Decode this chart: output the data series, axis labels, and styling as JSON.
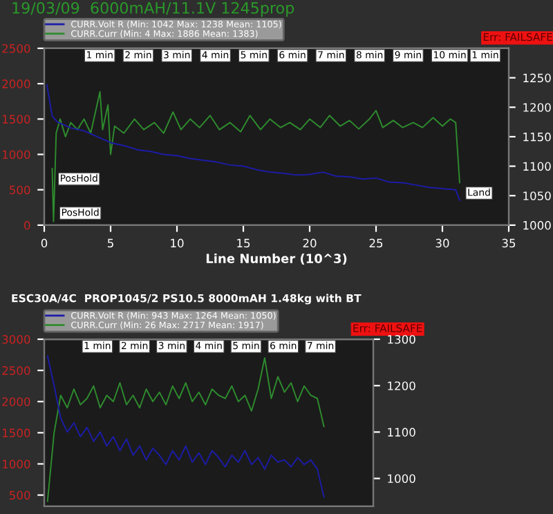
{
  "chart_data": [
    {
      "type": "line",
      "title": "19/03/09  6000mAH/11.1V 1245prop",
      "xlabel": "Line Number (10^3)",
      "legend": "top",
      "xlim": [
        0,
        35
      ],
      "xticks": [
        0,
        5,
        10,
        15,
        20,
        25,
        30,
        35
      ],
      "ylim": [
        0,
        2500
      ],
      "yticks": [
        0,
        500,
        1000,
        1500,
        2000,
        2500
      ],
      "y2lim": [
        1000,
        1300
      ],
      "y2ticks": [
        1000,
        1050,
        1100,
        1150,
        1200,
        1250
      ],
      "series": [
        {
          "name": "CURR.Volt R (Min: 1042 Max: 1238 Mean: 1105)",
          "color": "#1c1ca8",
          "axis": "y2",
          "x": [
            0.2,
            0.6,
            1,
            2,
            3,
            4,
            5,
            6,
            7,
            8,
            9,
            10,
            11,
            12,
            13,
            14,
            15,
            16,
            17,
            18,
            19,
            20,
            21,
            22,
            23,
            24,
            25,
            26,
            27,
            28,
            29,
            30,
            31,
            31.3
          ],
          "values": [
            1238,
            1185,
            1175,
            1165,
            1160,
            1150,
            1140,
            1135,
            1128,
            1125,
            1120,
            1118,
            1113,
            1110,
            1107,
            1102,
            1100,
            1094,
            1090,
            1088,
            1085,
            1086,
            1090,
            1083,
            1082,
            1078,
            1080,
            1073,
            1072,
            1068,
            1064,
            1062,
            1060,
            1042
          ]
        },
        {
          "name": "CURR.Curr (Min: 4 Max: 1886 Mean: 1383)",
          "color": "#2e8c2e",
          "x": [
            0.6,
            0.7,
            0.9,
            1.2,
            1.6,
            2,
            2.5,
            3,
            3.5,
            4.2,
            4.4,
            4.8,
            5,
            5.3,
            6,
            6.8,
            7.5,
            8.3,
            9,
            9.7,
            10.3,
            11,
            11.7,
            12.5,
            13.2,
            14,
            14.8,
            15.5,
            16.3,
            17,
            17.8,
            18.5,
            19.3,
            20,
            20.8,
            21.5,
            22.3,
            23,
            23.7,
            24.5,
            25,
            25.5,
            26.3,
            27,
            27.8,
            28.5,
            29.3,
            30,
            30.6,
            31,
            31.3
          ],
          "values": [
            800,
            50,
            1300,
            1500,
            1250,
            1450,
            1350,
            1500,
            1300,
            1886,
            1350,
            1700,
            1000,
            1400,
            1300,
            1500,
            1350,
            1450,
            1300,
            1600,
            1350,
            1500,
            1380,
            1550,
            1350,
            1450,
            1320,
            1550,
            1350,
            1500,
            1380,
            1450,
            1350,
            1500,
            1380,
            1550,
            1400,
            1480,
            1360,
            1500,
            1620,
            1380,
            1480,
            1380,
            1450,
            1380,
            1520,
            1400,
            1500,
            1450,
            600
          ]
        }
      ],
      "annotations": [
        "Err: FAILSAFE",
        "1 min",
        "2 min",
        "3 min",
        "4 min",
        "5 min",
        "6 min",
        "7 min",
        "8 min",
        "9 min",
        "10 min",
        "1 min",
        {
          "text": "PosHold",
          "x": 0.6,
          "y": 800
        },
        {
          "text": "PosHold",
          "x": 0.7,
          "y": 50
        },
        {
          "text": "Land",
          "x": 31.3,
          "y": 600
        }
      ]
    },
    {
      "type": "line",
      "title": "ESC30A/4C  PROP1045/2 PS10.5 8000mAH 1.48kg with BT",
      "legend": "top",
      "tick_labels": "y",
      "categories": [
        null,
        null,
        null,
        null,
        null,
        null,
        null,
        null,
        null,
        null,
        null,
        null,
        null,
        null,
        null,
        null,
        null,
        null,
        null,
        null,
        null,
        null,
        null,
        null,
        null,
        null,
        null,
        null,
        null,
        null,
        null,
        null,
        null,
        null,
        null,
        null,
        null,
        null,
        null,
        null,
        null,
        null,
        null,
        null,
        null,
        null,
        null,
        null,
        null,
        null
      ],
      "ylim": [
        320,
        3000
      ],
      "yticks": [
        500,
        1000,
        1500,
        2000,
        2500,
        3000
      ],
      "y2lim": [
        940,
        1300
      ],
      "y2ticks": [
        1000,
        1100,
        1200,
        1300
      ],
      "series": [
        {
          "name": "CURR.Volt R (Min: 943 Max: 1264 Mean: 1050)",
          "color": "#1c1ca8",
          "axis": "y2",
          "values": [
            1264,
            1200,
            1130,
            1100,
            1120,
            1090,
            1110,
            1080,
            1100,
            1070,
            1090,
            1060,
            1085,
            1050,
            1070,
            1040,
            1065,
            1050,
            1030,
            1060,
            1040,
            1070,
            1035,
            1055,
            1030,
            1060,
            1045,
            1025,
            1050,
            1035,
            1060,
            1030,
            1045,
            1020,
            1050,
            1035,
            1040,
            1025,
            1045,
            1030,
            1040,
            1020,
            960,
            null,
            null,
            null,
            null,
            null,
            null,
            null
          ]
        },
        {
          "name": "CURR.Curr (Min: 26 Max: 2717 Mean: 1917)",
          "color": "#2e8c2e",
          "values": [
            400,
            1500,
            2100,
            1900,
            2200,
            1950,
            2050,
            2250,
            1900,
            2100,
            2000,
            2300,
            1950,
            2100,
            1900,
            2200,
            2000,
            2150,
            1950,
            2250,
            2050,
            2300,
            2000,
            2150,
            1950,
            2200,
            2100,
            2050,
            2250,
            2000,
            2100,
            1850,
            2200,
            2700,
            2050,
            2400,
            2150,
            2300,
            2000,
            2250,
            2100,
            2050,
            1600,
            null,
            null,
            null,
            null,
            null,
            null,
            null
          ]
        }
      ],
      "annotations": [
        "Err: FAILSAFE",
        "1 min",
        "2 min",
        "3 min",
        "4 min",
        "5 min",
        "6 min",
        "7 min"
      ]
    }
  ]
}
